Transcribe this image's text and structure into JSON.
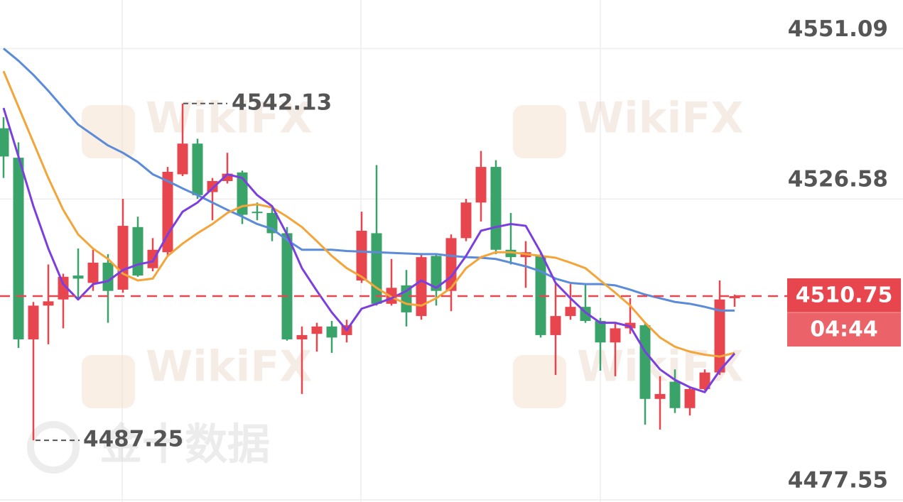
{
  "chart_data": {
    "type": "candlestick",
    "ylim": [
      4477.2,
      4559.0
    ],
    "yticks": [
      4551.09,
      4526.58,
      4477.55
    ],
    "grid": true,
    "up_color": "#e8464f",
    "down_color": "#3aa36a",
    "candles": {
      "open": [
        4538.1,
        4533.3,
        4503.7,
        4509.2,
        4510.2,
        4514.1,
        4512.9,
        4516.2,
        4511.8,
        4522.0,
        4515.3,
        4517.9,
        4530.6,
        4535.6,
        4527.7,
        4529.5,
        4530.9,
        4524.5,
        4524.3,
        4521.0,
        4503.7,
        4504.6,
        4505.8,
        4504.4,
        4513.3,
        4521.0,
        4509.5,
        4512.5,
        4507.5,
        4517.3,
        4511.6,
        4520.2,
        4526.0,
        4531.8,
        4518.3,
        4517.1,
        4517.3,
        4504.4,
        4507.5,
        4509.0,
        4506.7,
        4503.2,
        4505.5,
        4506.0,
        4494.0,
        4496.8,
        4492.5,
        4495.6,
        4498.3,
        4510.4
      ],
      "high": [
        4539.9,
        4535.8,
        4509.8,
        4515.9,
        4514.4,
        4518.5,
        4518.3,
        4517.6,
        4526.6,
        4523.7,
        4520.2,
        4531.8,
        4542.13,
        4536.4,
        4530.0,
        4534.1,
        4531.2,
        4526.0,
        4525.4,
        4522.0,
        4505.8,
        4506.4,
        4506.7,
        4506.9,
        4524.5,
        4532.1,
        4516.8,
        4515.0,
        4517.6,
        4517.6,
        4520.8,
        4526.6,
        4534.4,
        4532.9,
        4524.3,
        4519.7,
        4517.9,
        4512.9,
        4512.7,
        4512.7,
        4507.2,
        4506.4,
        4510.4,
        4506.4,
        4497.7,
        4498.8,
        4495.9,
        4498.8,
        4513.3,
        4511.0
      ],
      "low": [
        4530.0,
        4502.3,
        4487.25,
        4502.9,
        4505.5,
        4510.4,
        4511.6,
        4506.4,
        4511.3,
        4513.9,
        4514.8,
        4517.3,
        4530.3,
        4526.6,
        4523.1,
        4529.1,
        4522.5,
        4523.1,
        4519.7,
        4503.5,
        4494.8,
        4501.7,
        4501.5,
        4503.2,
        4512.9,
        4509.2,
        4509.2,
        4505.8,
        4506.9,
        4509.2,
        4508.3,
        4519.7,
        4522.9,
        4517.6,
        4515.9,
        4512.1,
        4504.0,
        4497.9,
        4506.9,
        4506.4,
        4498.6,
        4497.7,
        4504.6,
        4489.8,
        4489.0,
        4491.7,
        4491.3,
        4495.4,
        4497.9,
        4509.0
      ],
      "close": [
        4533.5,
        4503.7,
        4509.2,
        4509.9,
        4513.9,
        4513.6,
        4516.2,
        4511.6,
        4522.2,
        4514.1,
        4518.3,
        4531.0,
        4535.6,
        4527.2,
        4529.5,
        4530.7,
        4524.0,
        4524.3,
        4521.0,
        4503.7,
        4504.4,
        4505.8,
        4504.0,
        4506.0,
        4521.4,
        4509.5,
        4512.1,
        4508.1,
        4517.1,
        4511.6,
        4520.2,
        4526.0,
        4531.8,
        4518.3,
        4517.1,
        4517.9,
        4504.4,
        4507.5,
        4509.0,
        4506.7,
        4503.2,
        4505.5,
        4506.4,
        4494.0,
        4494.8,
        4492.5,
        4495.6,
        4498.3,
        4510.2,
        4510.75
      ]
    },
    "moving_averages": [
      {
        "color": "#5b8bd9",
        "values": [
          4551.1,
          4549.1,
          4546.8,
          4544.2,
          4541.4,
          4538.7,
          4537.0,
          4535.3,
          4534.1,
          4532.6,
          4530.6,
          4529.5,
          4528.3,
          4527.2,
          4526.0,
          4524.8,
          4523.7,
          4522.5,
          4521.7,
          4519.9,
          4518.3,
          4518.3,
          4518.3,
          4518.1,
          4518.0,
          4517.9,
          4517.8,
          4517.7,
          4517.6,
          4517.6,
          4517.3,
          4517.1,
          4517.0,
          4516.8,
          4516.2,
          4515.6,
          4514.8,
          4513.6,
          4512.9,
          4512.7,
          4512.7,
          4512.5,
          4511.8,
          4511.0,
          4510.4,
          4509.8,
          4509.5,
          4509.0,
          4508.4,
          4508.4
        ]
      },
      {
        "color": "#f3a53a",
        "values": [
          4547.4,
          4541.6,
          4535.8,
          4530.0,
          4524.8,
          4520.8,
          4518.5,
          4516.8,
          4514.4,
          4513.3,
          4513.6,
          4517.3,
          4519.3,
          4521.0,
          4522.5,
          4524.3,
          4525.4,
          4525.7,
          4525.2,
          4523.7,
          4522.0,
          4519.7,
          4517.3,
          4515.3,
          4513.9,
          4512.1,
          4510.6,
          4509.5,
          4509.2,
          4510.4,
          4512.1,
          4515.3,
          4517.1,
          4517.9,
          4517.9,
          4517.6,
          4517.3,
          4517.0,
          4516.2,
          4515.3,
          4513.3,
          4511.3,
          4509.2,
          4506.4,
          4504.0,
          4502.5,
          4501.7,
          4501.2,
          4500.9,
          4501.5
        ]
      },
      {
        "color": "#7b3fe0",
        "values": [
          4541.4,
          4533.5,
          4525.4,
          4518.5,
          4512.7,
          4510.2,
          4512.7,
          4513.2,
          4515.0,
          4515.9,
          4516.4,
          4520.8,
          4524.5,
          4526.0,
          4528.3,
          4530.6,
          4530.0,
          4527.2,
          4525.4,
          4520.8,
          4515.3,
          4511.6,
          4508.1,
          4505.2,
          4508.7,
          4509.5,
          4510.4,
          4511.6,
          4513.3,
          4512.1,
          4513.9,
          4517.3,
          4521.4,
          4522.0,
          4522.5,
          4522.2,
          4517.9,
          4512.9,
          4510.4,
          4508.1,
          4506.4,
          4506.4,
          4505.8,
          4501.7,
          4498.8,
          4497.1,
          4495.9,
          4495.1,
          4498.6,
          4501.4
        ]
      }
    ],
    "high_label": 4542.13,
    "low_label": 4487.25,
    "last_price": 4510.75,
    "countdown": "04:44",
    "watermarks": [
      "WikiFX",
      "金十数据"
    ]
  }
}
